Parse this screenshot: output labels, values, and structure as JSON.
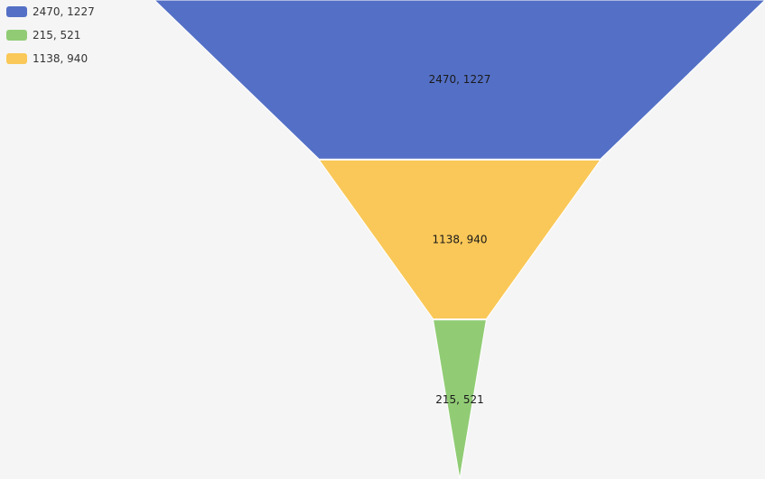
{
  "colors": [
    "#5470c6",
    "#91cc75",
    "#fac858"
  ],
  "chart_data": {
    "type": "funnel",
    "sort": "descending",
    "legend_placement": "top-left",
    "series": [
      {
        "data": [
          {
            "name": "2470, 1227",
            "value": 2470
          },
          {
            "name": "215, 521",
            "value": 215
          },
          {
            "name": "1138, 940",
            "value": 1138
          }
        ]
      }
    ]
  }
}
